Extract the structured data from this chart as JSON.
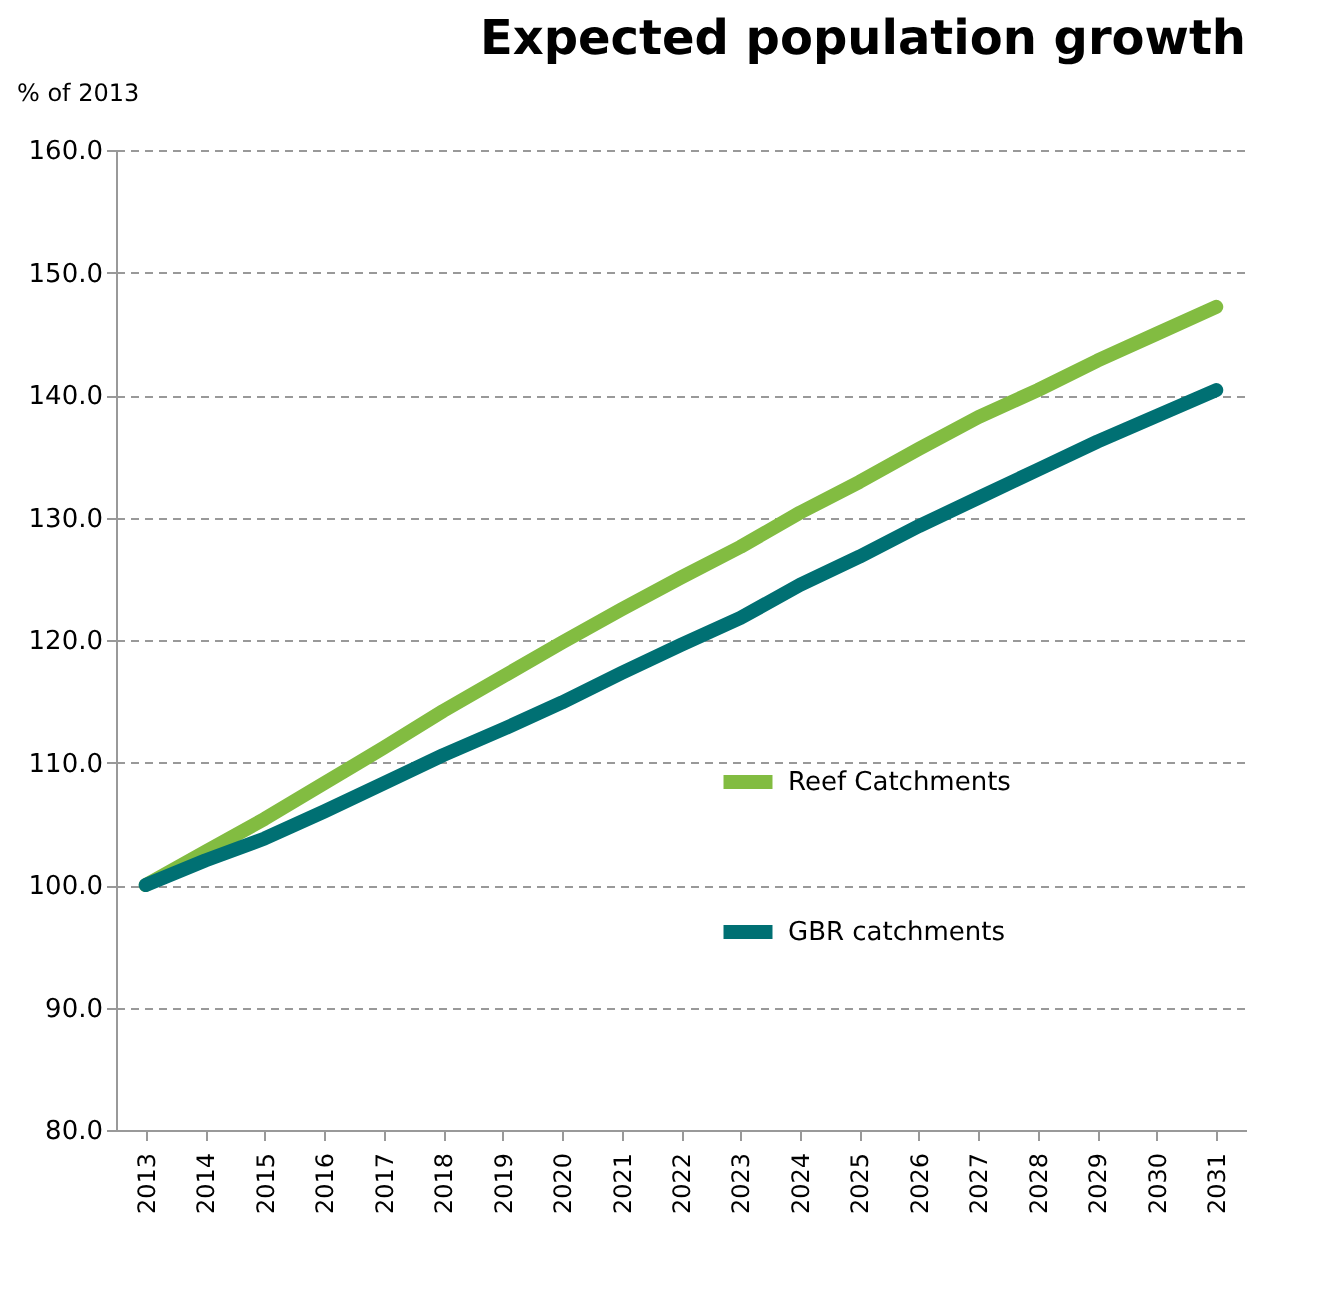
{
  "chart_data": {
    "type": "line",
    "title": "Expected population growth",
    "ylabel": "% of 2013",
    "categories": [
      "2013",
      "2014",
      "2015",
      "2016",
      "2017",
      "2018",
      "2019",
      "2020",
      "2021",
      "2022",
      "2023",
      "2024",
      "2025",
      "2026",
      "2027",
      "2028",
      "2029",
      "2030",
      "2031"
    ],
    "series": [
      {
        "name": "Reef Catchments",
        "color": "#82bc41",
        "values": [
          100,
          102.7,
          105.4,
          108.3,
          111.2,
          114.2,
          117.0,
          119.8,
          122.5,
          125.1,
          127.6,
          130.4,
          132.9,
          135.6,
          138.2,
          140.4,
          142.8,
          145.0,
          147.2
        ]
      },
      {
        "name": "GBR catchments",
        "color": "#007073",
        "values": [
          100,
          102.0,
          103.8,
          106.0,
          108.3,
          110.6,
          112.7,
          114.9,
          117.3,
          119.6,
          121.8,
          124.5,
          126.8,
          129.3,
          131.6,
          133.9,
          136.2,
          138.3,
          140.4
        ]
      }
    ],
    "ylim": [
      80,
      160
    ],
    "yticks": [
      {
        "value": 80,
        "label": "80.0"
      },
      {
        "value": 90,
        "label": "90.0"
      },
      {
        "value": 100,
        "label": "100.0"
      },
      {
        "value": 110,
        "label": "110.0"
      },
      {
        "value": 120,
        "label": "120.0"
      },
      {
        "value": 130,
        "label": "130.0"
      },
      {
        "value": 140,
        "label": "140.0"
      },
      {
        "value": 150,
        "label": "150.0"
      },
      {
        "value": 160,
        "label": "160.0"
      }
    ],
    "grid": "y",
    "legend": "bottom right",
    "marker": "none",
    "line_style": "solid"
  }
}
